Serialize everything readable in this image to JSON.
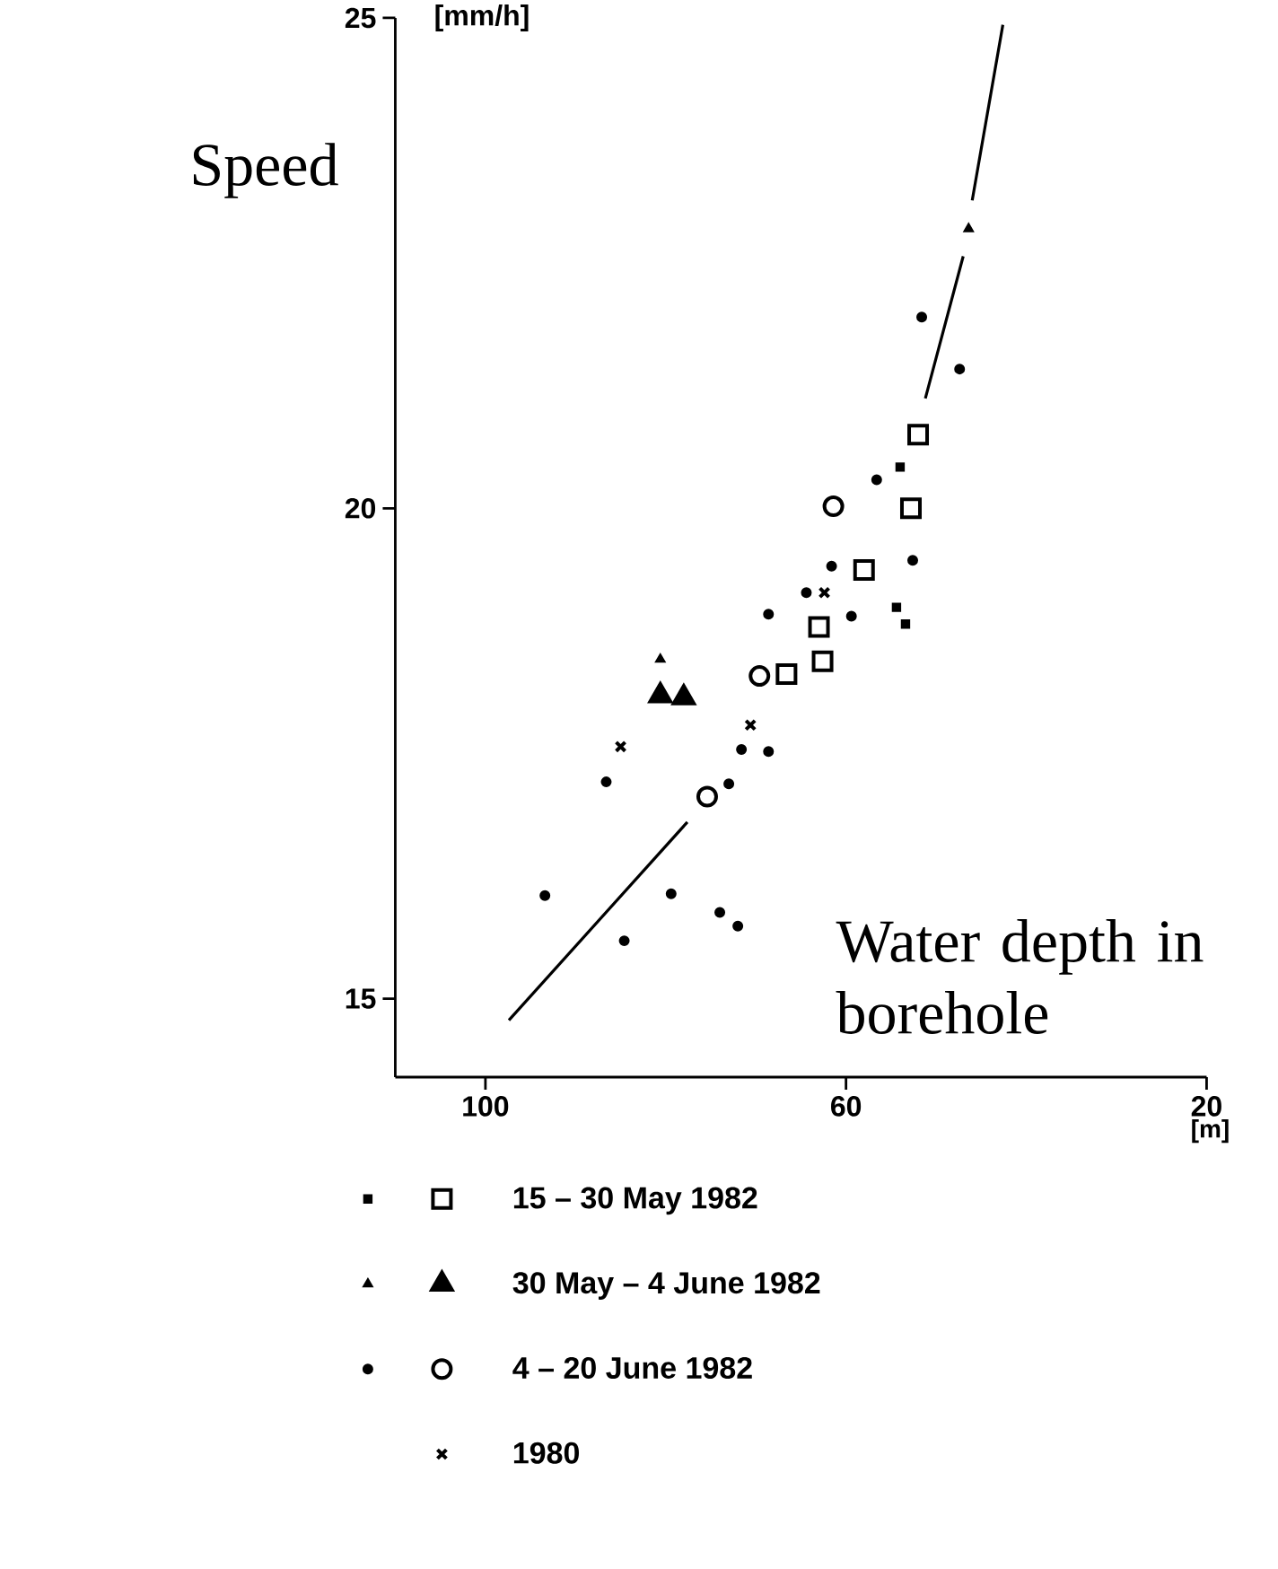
{
  "chart_data": {
    "type": "scatter",
    "ylabel": "Speed",
    "xlabel": "Water depth in borehole",
    "annotations": [
      "[mm/h]",
      "[m]"
    ],
    "xlim": [
      110,
      20
    ],
    "ylim": [
      14.2,
      25
    ],
    "xticks": [
      100,
      60,
      20
    ],
    "yticks": [
      15,
      20,
      25
    ],
    "legend": "bottom",
    "series": [
      {
        "color": "#000000",
        "marker": "square",
        "x": [
          54.4,
          53.4,
          54
        ],
        "values": [
          18.99,
          18.82,
          20.42
        ]
      },
      {
        "name": "15 – 30 May 1982",
        "color": "#000000",
        "marker": "square",
        "x": [
          52,
          52.8,
          58,
          63,
          62.6,
          66.6
        ],
        "values": [
          20.75,
          20.0,
          19.37,
          18.79,
          18.44,
          18.31
        ]
      },
      {
        "color": "#000000",
        "marker": "triangle",
        "x": [
          80.6,
          46.4
        ],
        "values": [
          18.46,
          22.85
        ]
      },
      {
        "name": "30 May – 4 June 1982",
        "color": "#000000",
        "marker": "triangle",
        "x": [
          80.6,
          78
        ],
        "values": [
          18.09,
          18.07
        ]
      },
      {
        "color": "#000000",
        "marker": "circle",
        "x": [
          93.4,
          84.6,
          79.4,
          86.6,
          71.6,
          68.6,
          73,
          74,
          72,
          61.6,
          59.4,
          52.6,
          47.4,
          51.6,
          56.6,
          68.6,
          64.4
        ],
        "values": [
          16.05,
          15.59,
          16.07,
          17.21,
          17.54,
          17.52,
          17.19,
          15.88,
          15.74,
          19.41,
          18.9,
          19.47,
          21.42,
          21.95,
          20.29,
          18.92,
          19.14
        ]
      },
      {
        "name": "4 – 20 June 1982",
        "color": "#000000",
        "marker": "circle",
        "x": [
          69.6,
          61.4,
          75.4
        ],
        "values": [
          18.29,
          20.02,
          17.06
        ]
      },
      {
        "name": "1980",
        "color": "#000000",
        "marker": "cross",
        "x": [
          85,
          70.6,
          62.4
        ],
        "values": [
          17.57,
          17.79,
          19.14
        ]
      },
      {
        "type": "line",
        "color": "#000000",
        "marker": "none",
        "x": [
          97.4,
          77.6,
          64,
          51.2,
          47,
          46.5,
          46,
          42.6
        ],
        "values": [
          14.78,
          16.8,
          null,
          21.12,
          22.57,
          null,
          23.14,
          24.93
        ]
      }
    ]
  }
}
